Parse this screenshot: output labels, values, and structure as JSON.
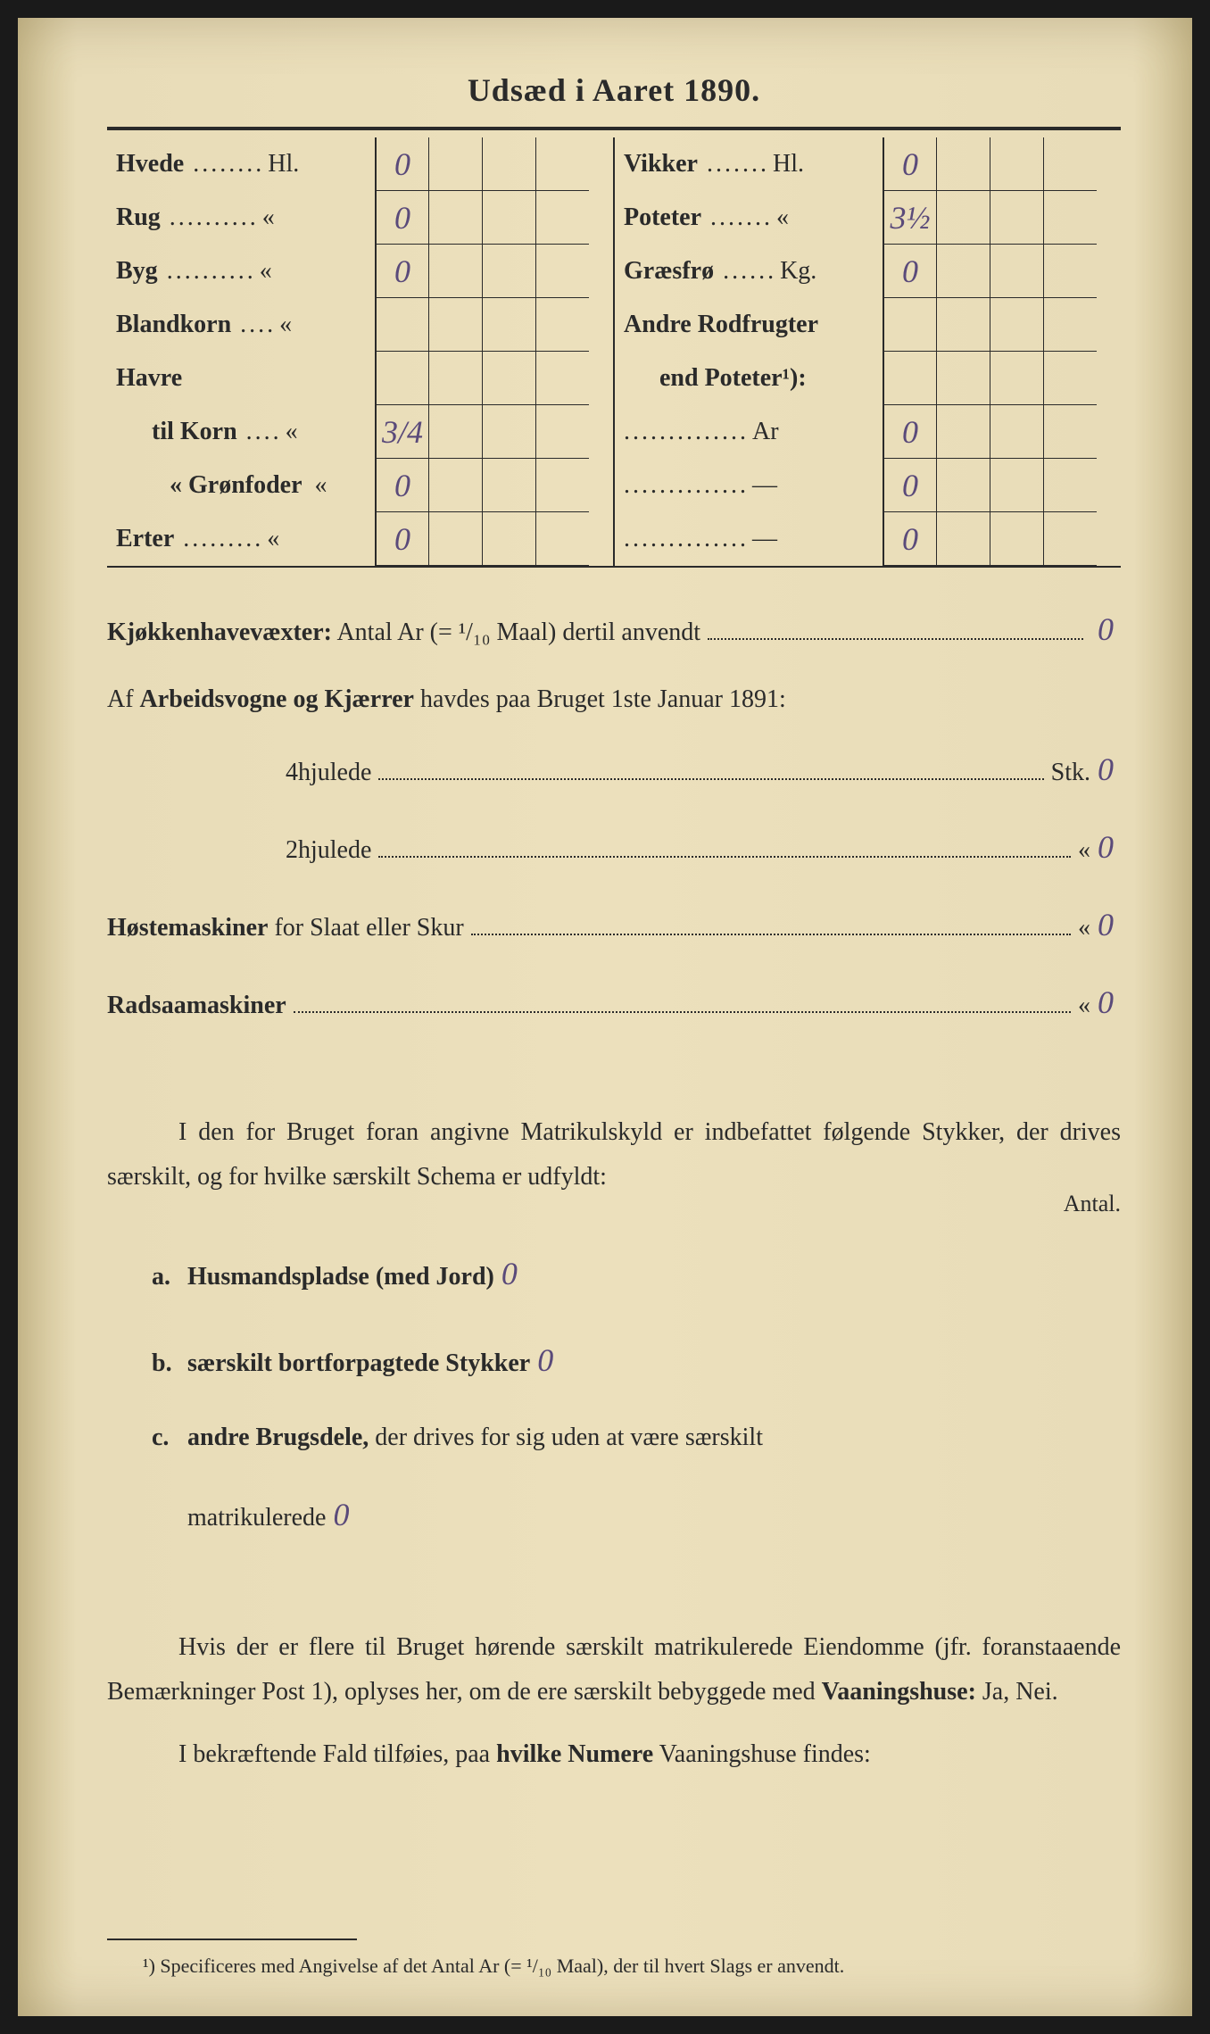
{
  "title": "Udsæd i Aaret 1890.",
  "colors": {
    "paper": "#e8dcb8",
    "ink": "#2a2a2a",
    "handwriting": "#5a4a7a"
  },
  "table": {
    "left": [
      {
        "label": "Hvede",
        "dots": "........",
        "unit": "Hl.",
        "val": "0"
      },
      {
        "label": "Rug",
        "dots": "..........",
        "unit": "«",
        "val": "0"
      },
      {
        "label": "Byg",
        "dots": "..........",
        "unit": "«",
        "val": "0"
      },
      {
        "label": "Blandkorn",
        "dots": "....",
        "unit": "«",
        "val": ""
      },
      {
        "label": "Havre",
        "dots": "",
        "unit": "",
        "val": ""
      },
      {
        "label": "til Korn",
        "dots": "....",
        "unit": "«",
        "val": "3/4",
        "indent": true
      },
      {
        "label": "« Grønfoder",
        "dots": "",
        "unit": "«",
        "val": "0",
        "indent2": true
      },
      {
        "label": "Erter",
        "dots": ".........",
        "unit": "«",
        "val": "0"
      }
    ],
    "right": [
      {
        "label": "Vikker",
        "dots": ".......",
        "unit": "Hl.",
        "val": "0"
      },
      {
        "label": "Poteter",
        "dots": ".......",
        "unit": "«",
        "val": "3½"
      },
      {
        "label": "Græsfrø",
        "dots": "......",
        "unit": "Kg.",
        "val": "0"
      },
      {
        "label": "Andre Rodfrugter",
        "dots": "",
        "unit": "",
        "val": ""
      },
      {
        "label": "end Poteter¹):",
        "dots": "",
        "unit": "",
        "val": "",
        "indent": true
      },
      {
        "label": "",
        "dots": "..............",
        "unit": "Ar",
        "val": "0"
      },
      {
        "label": "",
        "dots": "..............",
        "unit": "—",
        "val": "0"
      },
      {
        "label": "",
        "dots": "..............",
        "unit": "—",
        "val": "0"
      }
    ]
  },
  "section1": {
    "line1_prefix": "Kjøkkenhavevæxter:",
    "line1_text": " Antal Ar (= ¹/₁₀ Maal) dertil anvendt",
    "line1_val": "0",
    "line2_text": "Af Arbeidsvogne og Kjærrer havdes paa Bruget 1ste Januar 1891:",
    "line3_label": "4hjulede",
    "line3_suffix": "Stk.",
    "line3_val": "0",
    "line4_label": "2hjulede",
    "line4_suffix": "«",
    "line4_val": "0",
    "line5_prefix": "Høstemaskiner",
    "line5_text": " for Slaat eller Skur",
    "line5_suffix": "«",
    "line5_val": "0",
    "line6_prefix": "Radsaamaskiner",
    "line6_suffix": "«",
    "line6_val": "0"
  },
  "para1": "I den for Bruget foran angivne Matrikulskyld er indbefattet følgende Stykker, der drives særskilt, og for hvilke særskilt Schema er udfyldt:",
  "antal_label": "Antal.",
  "sublist": {
    "a_letter": "a.",
    "a_text": "Husmandspladse (med Jord)",
    "a_val": "0",
    "b_letter": "b.",
    "b_text": "særskilt bortforpagtede Stykker",
    "b_val": "0",
    "c_letter": "c.",
    "c_text": "andre Brugsdele,",
    "c_cont": " der drives for sig uden at være særskilt",
    "c_text2": "matrikulerede",
    "c_val": "0"
  },
  "para2": "Hvis der er flere til Bruget hørende særskilt matrikulerede Eiendomme (jfr. foranstaaende Bemærkninger Post 1), oplyses her, om de ere særskilt bebyggede med ",
  "para2_bold": "Vaaningshuse:",
  "para2_end": " Ja, Nei.",
  "para3_start": "I bekræftende Fald tilføies, paa ",
  "para3_bold": "hvilke Numere",
  "para3_end": " Vaaningshuse findes:",
  "footnote": "¹) Specificeres med Angivelse af det Antal Ar (= ¹/₁₀ Maal), der til hvert Slags er anvendt."
}
